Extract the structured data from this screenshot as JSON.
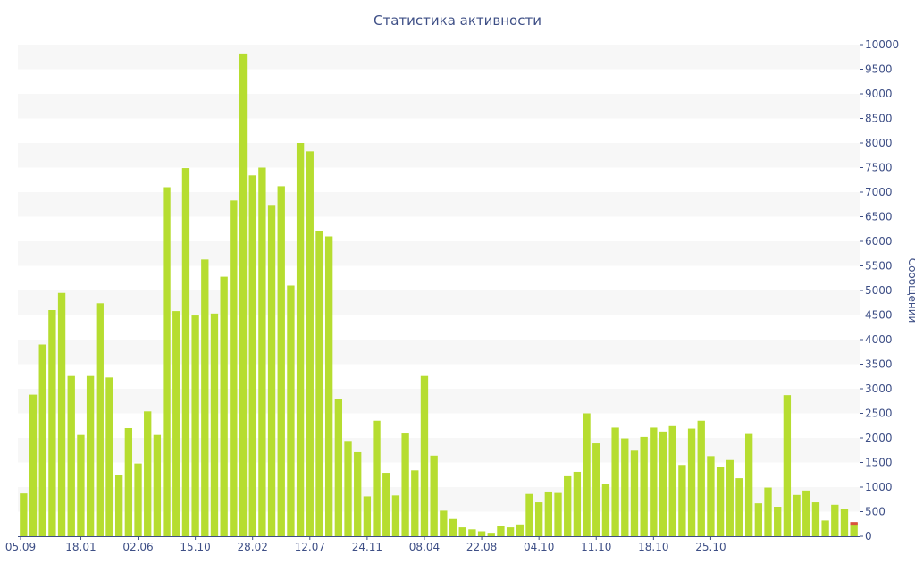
{
  "chart_data": {
    "type": "bar",
    "title": "Статистика активности",
    "xlabel": "",
    "ylabel": "Сообщений",
    "ylim": [
      0,
      10000
    ],
    "ytick_step": 500,
    "x_tick_labels": [
      "05.09",
      "18.01",
      "02.06",
      "15.10",
      "28.02",
      "12.07",
      "24.11",
      "08.04",
      "22.08",
      "04.10",
      "11.10",
      "18.10",
      "25.10"
    ],
    "grid": "alternating horizontal bands",
    "colors": {
      "bar": "#b6dd30",
      "last_bar_marker": "#d9533c",
      "band": "#f7f7f7",
      "axis_text": "#3e4f86",
      "axis_line": "#3e4f86"
    },
    "values": [
      870,
      2880,
      3900,
      4600,
      4950,
      3260,
      2060,
      3260,
      4740,
      3230,
      1240,
      2200,
      1480,
      2540,
      2060,
      7100,
      4580,
      7490,
      4490,
      5630,
      4530,
      5280,
      6830,
      9820,
      7340,
      7500,
      6740,
      7120,
      5100,
      8000,
      7830,
      6200,
      6100,
      2800,
      1940,
      1710,
      810,
      2350,
      1290,
      830,
      2090,
      1340,
      3260,
      1640,
      520,
      350,
      180,
      140,
      100,
      70,
      200,
      180,
      240,
      860,
      690,
      910,
      880,
      1220,
      1310,
      2500,
      1890,
      1070,
      2210,
      1990,
      1740,
      2020,
      2210,
      2130,
      2240,
      1450,
      2190,
      2350,
      1630,
      1400,
      1550,
      1180,
      2080,
      670,
      990,
      600,
      2870,
      840,
      930,
      690,
      320,
      640,
      560,
      270
    ]
  }
}
